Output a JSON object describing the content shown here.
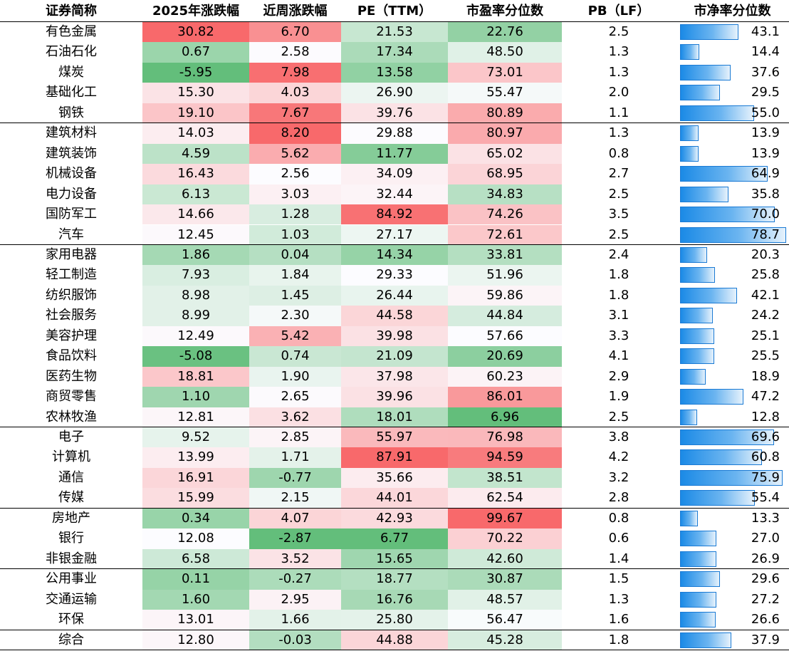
{
  "headers": [
    "证券简称",
    "2025年涨跌幅",
    "近周涨跌幅",
    "PE（TTM）",
    "市盈率分位数",
    "PB（LF）",
    "市净率分位数"
  ],
  "rows": [
    {
      "name": "有色金属",
      "ytd": "30.82",
      "week": "6.70",
      "pe": "21.53",
      "pe_pct": "22.76",
      "pb": "2.5",
      "pb_pct": "43.1"
    },
    {
      "name": "石油石化",
      "ytd": "0.67",
      "week": "2.58",
      "pe": "17.34",
      "pe_pct": "48.50",
      "pb": "1.3",
      "pb_pct": "14.4"
    },
    {
      "name": "煤炭",
      "ytd": "-5.95",
      "week": "7.98",
      "pe": "13.58",
      "pe_pct": "73.01",
      "pb": "1.3",
      "pb_pct": "37.6"
    },
    {
      "name": "基础化工",
      "ytd": "15.30",
      "week": "4.03",
      "pe": "26.90",
      "pe_pct": "55.47",
      "pb": "2.0",
      "pb_pct": "29.5"
    },
    {
      "name": "钢铁",
      "ytd": "19.10",
      "week": "7.67",
      "pe": "39.76",
      "pe_pct": "80.89",
      "pb": "1.1",
      "pb_pct": "55.0"
    },
    {
      "name": "建筑材料",
      "ytd": "14.03",
      "week": "8.20",
      "pe": "29.88",
      "pe_pct": "80.97",
      "pb": "1.3",
      "pb_pct": "13.9"
    },
    {
      "name": "建筑装饰",
      "ytd": "4.59",
      "week": "5.62",
      "pe": "11.77",
      "pe_pct": "65.02",
      "pb": "0.8",
      "pb_pct": "13.9"
    },
    {
      "name": "机械设备",
      "ytd": "16.43",
      "week": "2.56",
      "pe": "34.09",
      "pe_pct": "68.95",
      "pb": "2.7",
      "pb_pct": "64.9"
    },
    {
      "name": "电力设备",
      "ytd": "6.13",
      "week": "3.03",
      "pe": "32.44",
      "pe_pct": "34.83",
      "pb": "2.5",
      "pb_pct": "35.8"
    },
    {
      "name": "国防军工",
      "ytd": "14.66",
      "week": "1.28",
      "pe": "84.92",
      "pe_pct": "74.26",
      "pb": "3.5",
      "pb_pct": "70.0"
    },
    {
      "name": "汽车",
      "ytd": "12.45",
      "week": "1.03",
      "pe": "27.17",
      "pe_pct": "72.61",
      "pb": "2.5",
      "pb_pct": "78.7"
    },
    {
      "name": "家用电器",
      "ytd": "1.86",
      "week": "0.04",
      "pe": "14.34",
      "pe_pct": "33.81",
      "pb": "2.4",
      "pb_pct": "20.3"
    },
    {
      "name": "轻工制造",
      "ytd": "7.93",
      "week": "1.84",
      "pe": "29.33",
      "pe_pct": "51.96",
      "pb": "1.8",
      "pb_pct": "25.8"
    },
    {
      "name": "纺织服饰",
      "ytd": "8.98",
      "week": "1.45",
      "pe": "26.44",
      "pe_pct": "59.86",
      "pb": "1.8",
      "pb_pct": "42.1"
    },
    {
      "name": "社会服务",
      "ytd": "8.99",
      "week": "2.30",
      "pe": "44.58",
      "pe_pct": "44.84",
      "pb": "3.1",
      "pb_pct": "24.2"
    },
    {
      "name": "美容护理",
      "ytd": "12.49",
      "week": "5.42",
      "pe": "39.98",
      "pe_pct": "57.66",
      "pb": "3.3",
      "pb_pct": "25.1"
    },
    {
      "name": "食品饮料",
      "ytd": "-5.08",
      "week": "0.74",
      "pe": "21.09",
      "pe_pct": "20.69",
      "pb": "4.1",
      "pb_pct": "25.5"
    },
    {
      "name": "医药生物",
      "ytd": "18.81",
      "week": "1.90",
      "pe": "37.98",
      "pe_pct": "60.23",
      "pb": "2.9",
      "pb_pct": "18.9"
    },
    {
      "name": "商贸零售",
      "ytd": "1.10",
      "week": "2.65",
      "pe": "39.96",
      "pe_pct": "86.01",
      "pb": "1.9",
      "pb_pct": "47.2"
    },
    {
      "name": "农林牧渔",
      "ytd": "12.81",
      "week": "3.62",
      "pe": "18.01",
      "pe_pct": "6.96",
      "pb": "2.5",
      "pb_pct": "12.8"
    },
    {
      "name": "电子",
      "ytd": "9.52",
      "week": "2.85",
      "pe": "55.97",
      "pe_pct": "76.98",
      "pb": "3.8",
      "pb_pct": "69.6"
    },
    {
      "name": "计算机",
      "ytd": "13.99",
      "week": "1.71",
      "pe": "87.91",
      "pe_pct": "94.59",
      "pb": "4.2",
      "pb_pct": "60.8"
    },
    {
      "name": "通信",
      "ytd": "16.91",
      "week": "-0.77",
      "pe": "35.66",
      "pe_pct": "38.51",
      "pb": "3.2",
      "pb_pct": "75.9"
    },
    {
      "name": "传媒",
      "ytd": "15.99",
      "week": "2.15",
      "pe": "44.01",
      "pe_pct": "62.54",
      "pb": "2.8",
      "pb_pct": "55.4"
    },
    {
      "name": "房地产",
      "ytd": "0.34",
      "week": "4.07",
      "pe": "42.93",
      "pe_pct": "99.67",
      "pb": "0.8",
      "pb_pct": "13.3"
    },
    {
      "name": "银行",
      "ytd": "12.08",
      "week": "-2.87",
      "pe": "6.77",
      "pe_pct": "70.22",
      "pb": "0.6",
      "pb_pct": "27.0"
    },
    {
      "name": "非银金融",
      "ytd": "6.58",
      "week": "3.52",
      "pe": "15.65",
      "pe_pct": "42.60",
      "pb": "1.4",
      "pb_pct": "26.9"
    },
    {
      "name": "公用事业",
      "ytd": "0.11",
      "week": "-0.27",
      "pe": "18.77",
      "pe_pct": "30.87",
      "pb": "1.5",
      "pb_pct": "29.6"
    },
    {
      "name": "交通运输",
      "ytd": "1.60",
      "week": "2.95",
      "pe": "16.76",
      "pe_pct": "48.57",
      "pb": "1.3",
      "pb_pct": "27.2"
    },
    {
      "name": "环保",
      "ytd": "13.01",
      "week": "1.66",
      "pe": "25.80",
      "pe_pct": "56.47",
      "pb": "1.6",
      "pb_pct": "26.6"
    },
    {
      "name": "综合",
      "ytd": "12.80",
      "week": "-0.03",
      "pe": "44.88",
      "pe_pct": "45.28",
      "pb": "1.8",
      "pb_pct": "37.9"
    }
  ],
  "group_break_after_rows": [
    4,
    10,
    19,
    23,
    26,
    29
  ],
  "colors": {
    "positive_max": "#f8696b",
    "neutral": "#fcfcff",
    "negative_max": "#63be7b",
    "bar_fill": "#1b8ae6",
    "bar_border": "#1a7ad4"
  }
}
